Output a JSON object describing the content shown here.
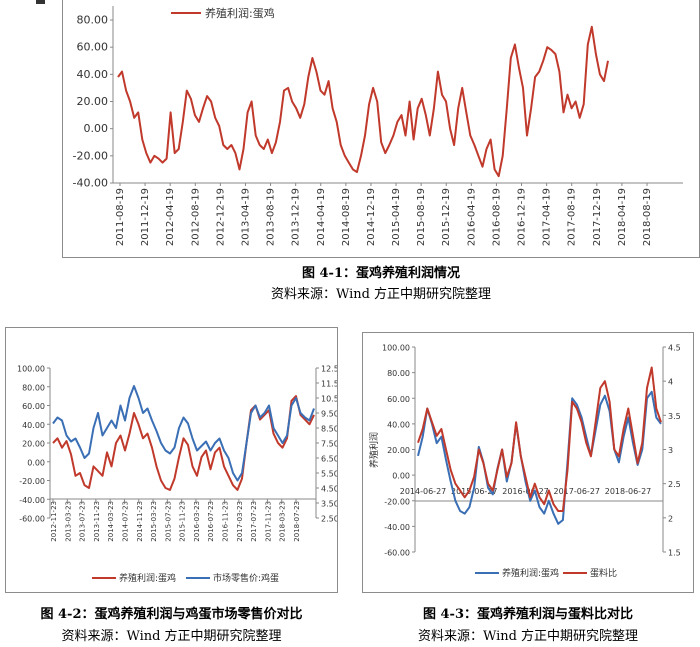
{
  "chart_data": [
    {
      "type": "line",
      "title": "图 4-1：蛋鸡养殖利润情况",
      "source": "资料来源：Wind    方正中期研究院整理",
      "legend": [
        "养殖利润:蛋鸡"
      ],
      "colors": [
        "#c0392b"
      ],
      "ylim": [
        -40,
        80
      ],
      "yticks": [
        "80.00",
        "60.00",
        "40.00",
        "20.00",
        "0.00",
        "-20.00",
        "-40.00"
      ],
      "xticks": [
        "2011-08-19",
        "2011-12-19",
        "2012-04-19",
        "2012-08-19",
        "2012-12-19",
        "2013-04-19",
        "2013-08-19",
        "2013-12-19",
        "2014-04-19",
        "2014-08-19",
        "2014-12-19",
        "2015-04-19",
        "2015-08-19",
        "2015-12-19",
        "2016-04-19",
        "2016-08-19",
        "2016-12-19",
        "2017-04-19",
        "2017-08-19",
        "2017-12-19",
        "2018-04-19",
        "2018-08-19"
      ],
      "series": [
        {
          "name": "养殖利润:蛋鸡",
          "values": [
            38,
            42,
            28,
            20,
            8,
            12,
            -8,
            -18,
            -25,
            -20,
            -22,
            -25,
            -22,
            12,
            -18,
            -15,
            5,
            28,
            22,
            10,
            5,
            15,
            24,
            20,
            8,
            2,
            -12,
            -15,
            -12,
            -18,
            -30,
            -15,
            12,
            20,
            -5,
            -12,
            -15,
            -8,
            -18,
            -10,
            5,
            28,
            30,
            20,
            15,
            8,
            18,
            38,
            52,
            42,
            28,
            25,
            35,
            15,
            5,
            -12,
            -20,
            -25,
            -30,
            -32,
            -20,
            -5,
            18,
            30,
            20,
            -10,
            -18,
            -12,
            -5,
            5,
            10,
            -5,
            20,
            -8,
            15,
            22,
            10,
            -5,
            15,
            42,
            25,
            20,
            0,
            -12,
            15,
            30,
            12,
            -5,
            -12,
            -20,
            -28,
            -15,
            -8,
            -30,
            -35,
            -20,
            15,
            52,
            62,
            45,
            30,
            -5,
            15,
            38,
            42,
            50,
            60,
            58,
            55,
            42,
            12,
            25,
            15,
            20,
            8,
            18,
            62,
            75,
            55,
            40,
            35,
            50
          ]
        }
      ]
    },
    {
      "type": "line",
      "title": "图 4-2：蛋鸡养殖利润与鸡蛋市场零售价对比",
      "source": "资料来源：Wind    方正中期研究院整理",
      "legend": [
        "养殖利润:蛋鸡",
        "市场零售价:鸡蛋"
      ],
      "colors": [
        "#c0392b",
        "#3a6fb5"
      ],
      "ylim": [
        -60,
        100
      ],
      "y2lim": [
        2.5,
        12.5
      ],
      "yticks": [
        "100.00",
        "80.00",
        "60.00",
        "40.00",
        "20.00",
        "0.00",
        "-20.00",
        "-40.00",
        "-60.00"
      ],
      "y2ticks": [
        "12.50",
        "11.50",
        "10.50",
        "9.50",
        "8.50",
        "7.50",
        "6.50",
        "5.50",
        "4.50",
        "3.50",
        "2.50"
      ],
      "xticks": [
        "2012-11-23",
        "2013-03-23",
        "2013-07-23",
        "2013-11-23",
        "2014-03-23",
        "2014-07-23",
        "2014-11-23",
        "2015-03-23",
        "2015-07-23",
        "2015-11-23",
        "2016-03-23",
        "2016-07-23",
        "2016-11-23",
        "2017-03-23",
        "2017-07-23",
        "2017-11-23",
        "2018-03-23",
        "2018-07-23"
      ],
      "series": [
        {
          "name": "养殖利润:蛋鸡",
          "values": [
            20,
            25,
            15,
            22,
            8,
            -15,
            -12,
            -25,
            -28,
            -5,
            -10,
            -15,
            10,
            -5,
            20,
            28,
            12,
            30,
            52,
            40,
            25,
            30,
            15,
            -5,
            -20,
            -28,
            -30,
            -18,
            5,
            25,
            18,
            -5,
            -15,
            5,
            12,
            -8,
            10,
            15,
            -5,
            -15,
            -25,
            -30,
            -18,
            20,
            55,
            60,
            45,
            50,
            55,
            30,
            20,
            15,
            25,
            65,
            70,
            50,
            45,
            40,
            50
          ]
        },
        {
          "name": "市场零售价:鸡蛋",
          "values": [
            8.8,
            9.2,
            9.0,
            8.0,
            7.6,
            7.8,
            7.2,
            6.5,
            6.8,
            8.5,
            9.5,
            8.0,
            8.5,
            9.0,
            8.5,
            10.0,
            9.0,
            10.5,
            11.3,
            10.5,
            9.5,
            9.8,
            9.0,
            8.3,
            7.5,
            7.0,
            6.8,
            7.2,
            8.5,
            9.2,
            8.8,
            7.8,
            7.0,
            7.3,
            7.6,
            7.0,
            7.5,
            7.8,
            7.0,
            6.5,
            5.5,
            5.0,
            5.5,
            7.5,
            9.5,
            10.0,
            9.2,
            9.5,
            10.0,
            8.5,
            8.0,
            7.5,
            8.0,
            10.0,
            10.5,
            9.5,
            9.2,
            9.0,
            9.8
          ]
        }
      ]
    },
    {
      "type": "line",
      "title": "图 4-3：蛋鸡养殖利润与蛋料比对比",
      "source": "资料来源：Wind    方正中期研究院整理",
      "legend": [
        "养殖利润:蛋鸡",
        "蛋料比"
      ],
      "colors": [
        "#3a6fb5",
        "#c0392b"
      ],
      "ylabel": "养殖利润",
      "ylim": [
        -60,
        100
      ],
      "y2lim": [
        1.5,
        4.5
      ],
      "yticks": [
        "100.00",
        "80.00",
        "60.00",
        "40.00",
        "20.00",
        "0.00",
        "-20.00",
        "-40.00",
        "-60.00"
      ],
      "y2ticks": [
        "4.5",
        "4",
        "3.5",
        "3",
        "2.5",
        "2",
        "1.5"
      ],
      "xticks": [
        "2014-06-27",
        "2015-06-27",
        "2016-06-27",
        "2017-06-27",
        "2018-06-27"
      ],
      "series": [
        {
          "name": "养殖利润:蛋鸡",
          "values": [
            15,
            30,
            52,
            40,
            25,
            30,
            12,
            -5,
            -20,
            -28,
            -30,
            -25,
            -10,
            22,
            10,
            -10,
            -15,
            5,
            20,
            -5,
            10,
            40,
            15,
            -5,
            -20,
            -12,
            -25,
            -30,
            -20,
            -30,
            -38,
            -35,
            10,
            60,
            55,
            45,
            30,
            15,
            35,
            55,
            62,
            50,
            20,
            10,
            30,
            45,
            25,
            8,
            20,
            60,
            65,
            45,
            40
          ]
        },
        {
          "name": "蛋料比",
          "values": [
            3.1,
            3.3,
            3.6,
            3.4,
            3.2,
            3.3,
            3.0,
            2.7,
            2.5,
            2.4,
            2.3,
            2.4,
            2.6,
            3.0,
            2.8,
            2.5,
            2.4,
            2.7,
            3.0,
            2.6,
            2.8,
            3.4,
            2.9,
            2.6,
            2.3,
            2.5,
            2.3,
            2.2,
            2.4,
            2.2,
            2.1,
            2.1,
            2.7,
            3.7,
            3.6,
            3.4,
            3.1,
            2.9,
            3.4,
            3.9,
            4.0,
            3.7,
            3.0,
            2.9,
            3.3,
            3.6,
            3.2,
            2.8,
            3.1,
            3.9,
            4.2,
            3.6,
            3.4
          ]
        }
      ]
    }
  ]
}
